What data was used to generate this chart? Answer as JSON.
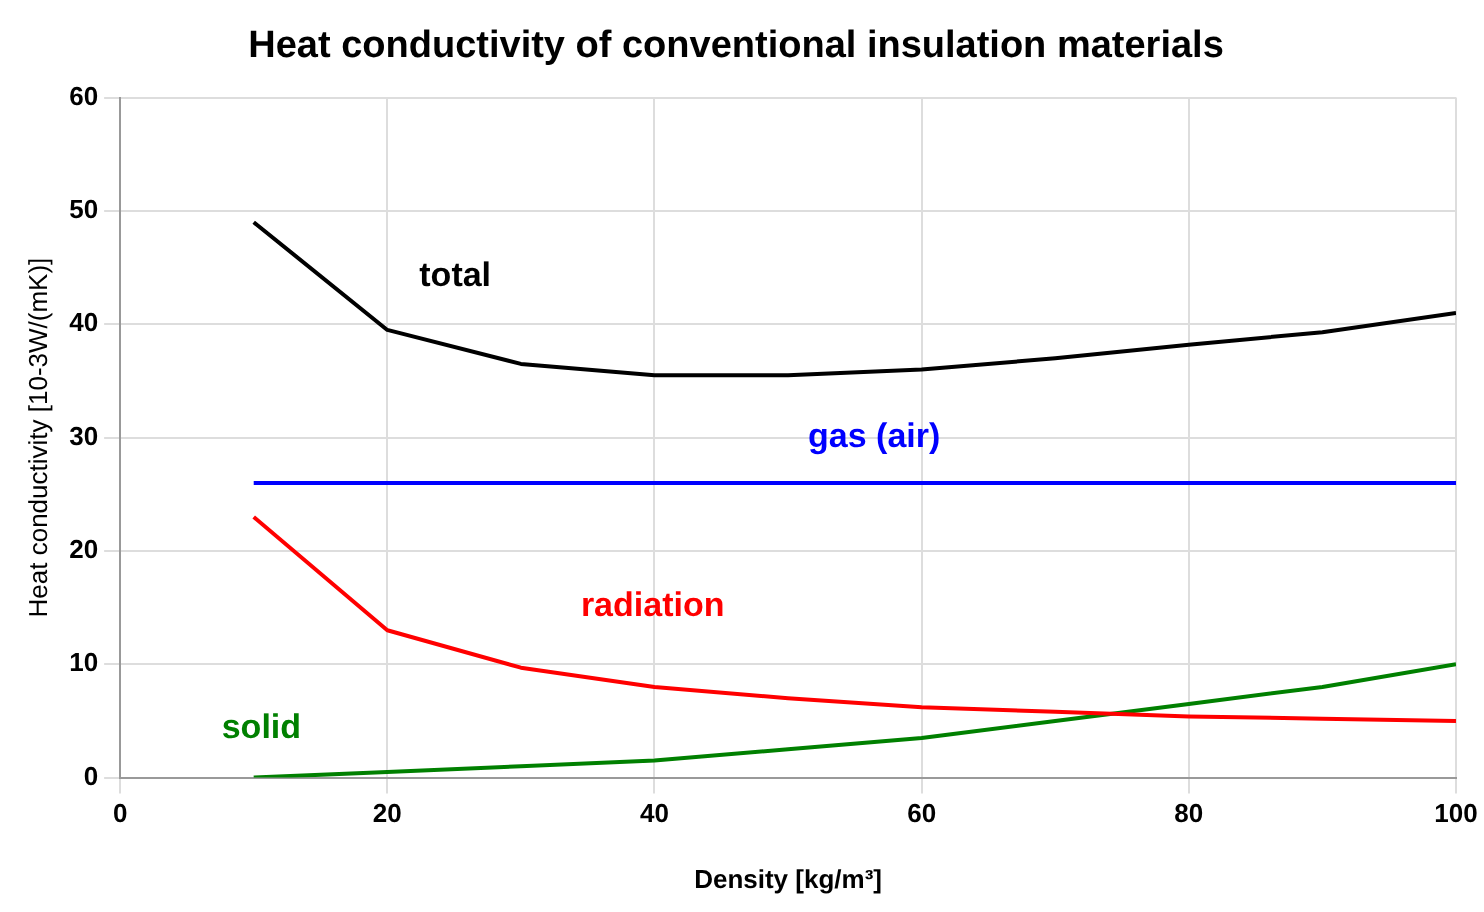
{
  "chart_data": {
    "type": "line",
    "title": "Heat conductivity of conventional insulation materials",
    "xlabel": "Density [kg/m³]",
    "ylabel": "Heat conductivity [10-3W/(mK)]",
    "x": [
      10,
      20,
      30,
      40,
      50,
      60,
      70,
      80,
      90,
      100
    ],
    "series": [
      {
        "name": "total",
        "color": "#000000",
        "values": [
          49,
          39.5,
          36.5,
          35.5,
          35.5,
          36,
          37,
          38.2,
          39.3,
          41
        ]
      },
      {
        "name": "gas (air)",
        "color": "#0000ff",
        "values": [
          26,
          26,
          26,
          26,
          26,
          26,
          26,
          26,
          26,
          26
        ]
      },
      {
        "name": "radiation",
        "color": "#ff0000",
        "values": [
          23,
          13,
          9.7,
          8,
          7,
          6.2,
          5.8,
          5.4,
          5.2,
          5
        ]
      },
      {
        "name": "solid",
        "color": "#008000",
        "values": [
          0,
          0.5,
          1,
          1.5,
          2.5,
          3.5,
          5,
          6.5,
          8,
          10
        ]
      }
    ],
    "xlim": [
      0,
      100
    ],
    "xticks": [
      0,
      20,
      40,
      60,
      80,
      100
    ],
    "ylim": [
      0,
      60
    ],
    "yticks": [
      0,
      10,
      20,
      30,
      40,
      50,
      60
    ],
    "grid": true,
    "legend": false
  }
}
